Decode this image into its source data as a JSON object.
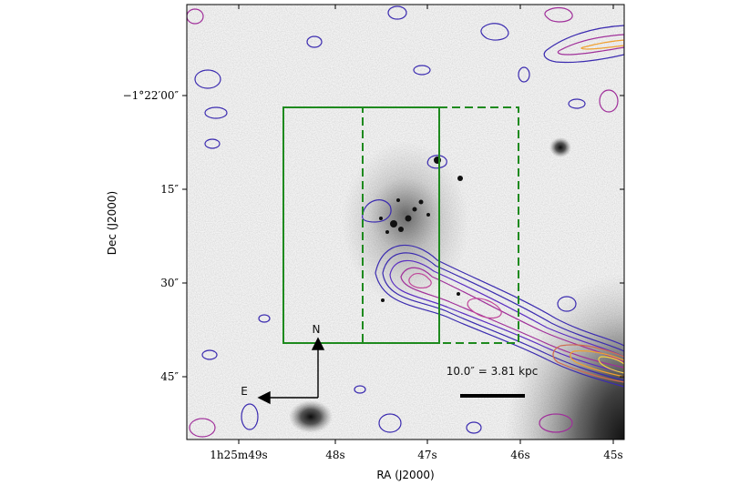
{
  "axes": {
    "xlabel": "RA (J2000)",
    "ylabel": "Dec (J2000)",
    "x_ticks": [
      {
        "text": "1h25m49s"
      },
      {
        "text": "48s"
      },
      {
        "text": "47s"
      },
      {
        "text": "46s"
      },
      {
        "text": "45s"
      }
    ],
    "y_ticks": [
      {
        "text": "−1°22′00″"
      },
      {
        "text": "15″"
      },
      {
        "text": "30″"
      },
      {
        "text": "45″"
      }
    ]
  },
  "compass": {
    "north": "N",
    "east": "E"
  },
  "scale_bar": {
    "label": "10.0″ = 3.81 kpc"
  },
  "colors": {
    "box": "#1e8a1e",
    "contour_low": "#3b2bb0",
    "contour_mid": "#a02f9a",
    "contour_high": "#f0a030",
    "background_noise": "#9a9a9a"
  }
}
